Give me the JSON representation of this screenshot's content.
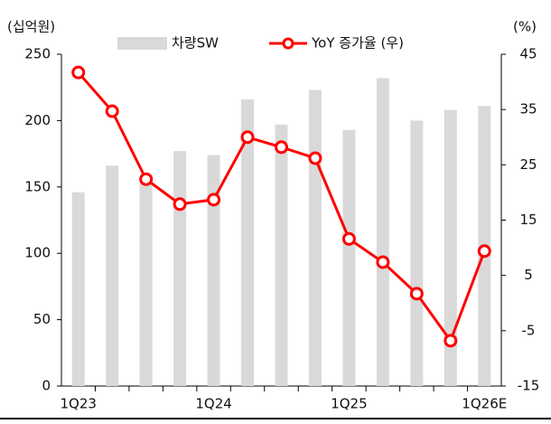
{
  "chart_data": {
    "type": "bar_line",
    "y_label": "(십억원)",
    "y2_label": "(%)",
    "categories": [
      "1Q23",
      null,
      null,
      null,
      "1Q24",
      null,
      null,
      null,
      "1Q25",
      null,
      null,
      null,
      "1Q26E"
    ],
    "series": [
      {
        "name": "차량SW",
        "color": "#d9d9d9",
        "type": "bar",
        "values": [
          146,
          166,
          155,
          177,
          174,
          216,
          197,
          223,
          193,
          232,
          200,
          208,
          211
        ]
      },
      {
        "name": "YoY 증가율 (우)",
        "color": "#ff0000",
        "type": "line",
        "axis": "y2",
        "values": [
          41.7,
          34.7,
          22.4,
          17.9,
          18.7,
          30.0,
          28.2,
          26.2,
          11.6,
          7.4,
          1.7,
          -6.8,
          9.4
        ]
      }
    ],
    "ylim": [
      0,
      250
    ],
    "yticks": [
      0,
      50,
      100,
      150,
      200,
      250
    ],
    "y2lim": [
      -15,
      45
    ],
    "y2ticks": [
      -15,
      -5,
      5,
      15,
      25,
      35,
      45
    ]
  }
}
